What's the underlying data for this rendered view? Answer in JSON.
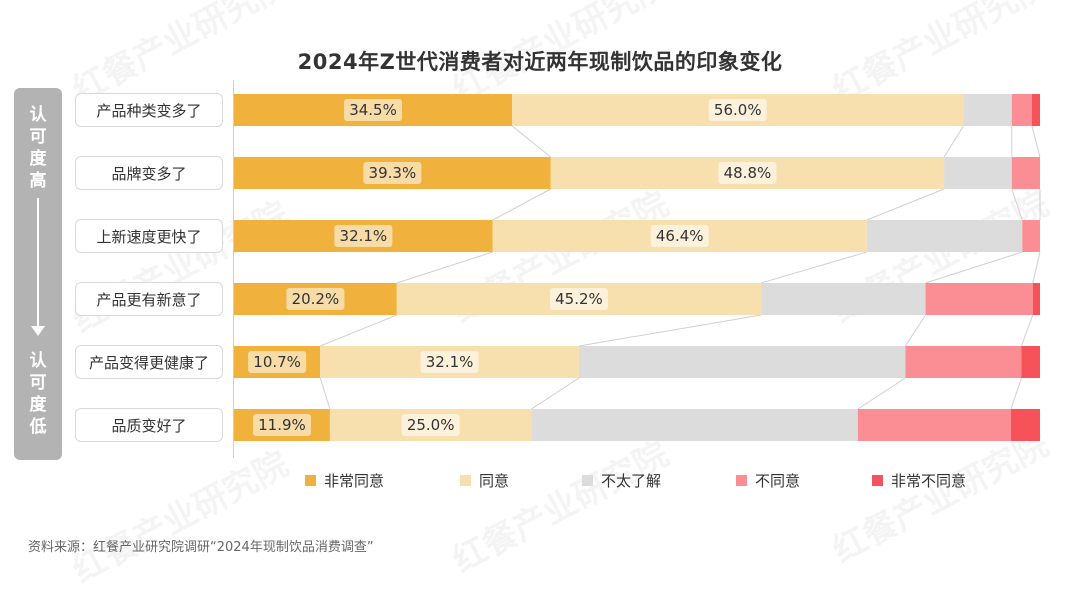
{
  "watermark_text": "红餐产业研究院",
  "side_scale": {
    "top_label": [
      "认",
      "可",
      "度",
      "高"
    ],
    "bottom_label": [
      "认",
      "可",
      "度",
      "低"
    ]
  },
  "source_note": "资料来源：红餐产业研究院调研“2024年现制饮品消费调查”",
  "chart_data": {
    "type": "bar",
    "orientation": "horizontal",
    "stacked": true,
    "title": "2024年Z世代消费者对近两年现制饮品的印象变化",
    "xlim": [
      0,
      100
    ],
    "categories": [
      "产品种类变多了",
      "品牌变多了",
      "上新速度更快了",
      "产品更有新意了",
      "产品变得更健康了",
      "品质变好了"
    ],
    "legend_position": "bottom",
    "series": [
      {
        "name": "非常同意",
        "color": "#f0b23c",
        "values": [
          34.5,
          39.3,
          32.1,
          20.2,
          10.7,
          11.9
        ],
        "labels": [
          "34.5%",
          "39.3%",
          "32.1%",
          "20.2%",
          "10.7%",
          "11.9%"
        ]
      },
      {
        "name": "同意",
        "color": "#f8dfae",
        "values": [
          56.0,
          48.8,
          46.4,
          45.2,
          32.1,
          25.0
        ],
        "labels": [
          "56.0%",
          "48.8%",
          "46.4%",
          "45.2%",
          "32.1%",
          "25.0%"
        ]
      },
      {
        "name": "不太了解",
        "color": "#dcdcdc",
        "values": [
          6.0,
          8.4,
          19.3,
          20.4,
          40.5,
          40.5
        ]
      },
      {
        "name": "不同意",
        "color": "#fb8e95",
        "values": [
          2.5,
          3.5,
          2.2,
          13.3,
          14.4,
          19.0
        ]
      },
      {
        "name": "非常不同意",
        "color": "#f5525a",
        "values": [
          1.0,
          0.0,
          0.0,
          0.9,
          2.3,
          3.6
        ]
      }
    ]
  }
}
